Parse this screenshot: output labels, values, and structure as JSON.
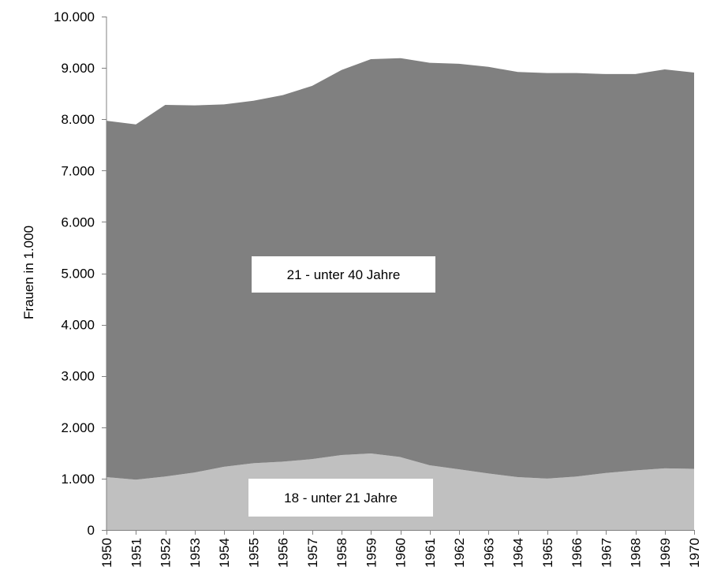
{
  "chart_data": {
    "type": "area",
    "stacked": true,
    "title": "",
    "xlabel": "",
    "ylabel": "Frauen in 1.000",
    "ylim": [
      0,
      10000
    ],
    "grid": false,
    "legend": "none",
    "y_ticks": [
      "0",
      "1.000",
      "2.000",
      "3.000",
      "4.000",
      "5.000",
      "6.000",
      "7.000",
      "8.000",
      "9.000",
      "10.000"
    ],
    "y_tick_values": [
      0,
      1000,
      2000,
      3000,
      4000,
      5000,
      6000,
      7000,
      8000,
      9000,
      10000
    ],
    "categories": [
      "1950",
      "1951",
      "1952",
      "1953",
      "1954",
      "1955",
      "1956",
      "1957",
      "1958",
      "1959",
      "1960",
      "1961",
      "1962",
      "1963",
      "1964",
      "1965",
      "1966",
      "1967",
      "1968",
      "1969",
      "1970"
    ],
    "series": [
      {
        "name": "18 - unter 21 Jahre",
        "color": "#c0c0c0",
        "values": [
          1030,
          980,
          1040,
          1120,
          1230,
          1300,
          1330,
          1380,
          1460,
          1490,
          1420,
          1260,
          1180,
          1100,
          1030,
          1000,
          1040,
          1110,
          1160,
          1200,
          1190
        ]
      },
      {
        "name": "21 - unter 40 Jahre",
        "color": "#808080",
        "values": [
          6940,
          6920,
          7240,
          7150,
          7060,
          7060,
          7140,
          7270,
          7500,
          7680,
          7770,
          7840,
          7900,
          7920,
          7890,
          7900,
          7860,
          7770,
          7720,
          7770,
          7720
        ]
      }
    ],
    "totals": [
      7970,
      7900,
      8280,
      8270,
      8290,
      8360,
      8470,
      8650,
      8960,
      9170,
      9190,
      9100,
      9080,
      9020,
      8920,
      8900,
      8900,
      8880,
      8880,
      8970,
      8910
    ]
  }
}
